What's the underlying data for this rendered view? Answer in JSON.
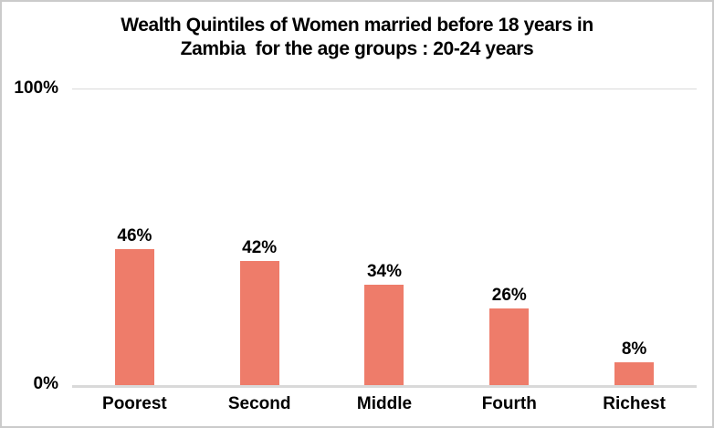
{
  "chart_title": {
    "line1": "Wealth Quintiles of Women married before 18 years in",
    "line2": "Zambia  for the age groups : 20-24 years"
  },
  "y_axis": {
    "top_tick": "100%",
    "bottom_tick": "0%"
  },
  "chart_data": {
    "type": "bar",
    "title": "Wealth Quintiles of Women married before 18 years in Zambia  for the age groups : 20-24 years",
    "categories": [
      "Poorest",
      "Second",
      "Middle",
      "Fourth",
      "Richest"
    ],
    "values": [
      46,
      42,
      34,
      26,
      8
    ],
    "data_labels": [
      "46%",
      "42%",
      "34%",
      "26%",
      "8%"
    ],
    "xlabel": "",
    "ylabel": "",
    "ylim": [
      0,
      100
    ],
    "ytick_labels": [
      "0%",
      "100%"
    ],
    "grid": "horizontal gridline at 100% and axis line at 0% only",
    "legend": false,
    "colors": {
      "bar": "#EE7C6A",
      "grid_line": "#D9D9D9",
      "axis_line": "#D9D9D9",
      "text": "#000000",
      "background": "#FFFFFF",
      "border": "#CBCBCB"
    }
  }
}
